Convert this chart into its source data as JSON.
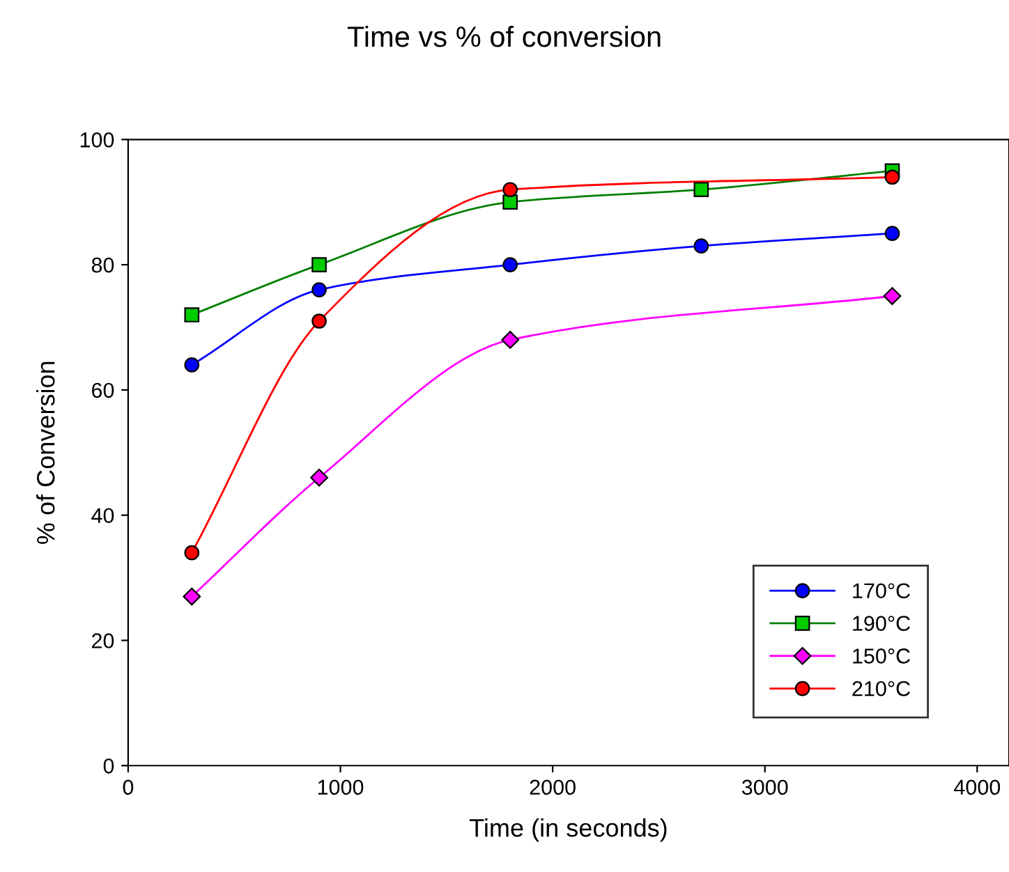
{
  "chart_data": {
    "type": "line",
    "title": "Time vs % of conversion",
    "xlabel": "Time (in seconds)",
    "ylabel": "% of Conversion",
    "xlim": [
      0,
      4150
    ],
    "xticks": [
      0,
      1000,
      2000,
      3000,
      4000
    ],
    "ylim": [
      0,
      100
    ],
    "yticks": [
      0,
      20,
      40,
      60,
      80,
      100
    ],
    "grid": false,
    "legend": "bottom right",
    "line_style": "solid",
    "series": [
      {
        "name": "170°C",
        "color": "#0000ff",
        "marker": "circle",
        "x": [
          300,
          900,
          1800,
          2700,
          3600
        ],
        "values": [
          64,
          76,
          80,
          83,
          85
        ]
      },
      {
        "name": "190°C",
        "color": "#008000",
        "marker": "square",
        "x": [
          300,
          900,
          1800,
          2700,
          3600
        ],
        "values": [
          72,
          80,
          90,
          92,
          95
        ]
      },
      {
        "name": "150°C",
        "color": "#ff00ff",
        "marker": "diamond",
        "x": [
          300,
          900,
          1800,
          3600
        ],
        "values": [
          27,
          46,
          68,
          75
        ]
      },
      {
        "name": "210°C",
        "color": "#ff0000",
        "marker": "circle",
        "x": [
          300,
          900,
          1800,
          3600
        ],
        "values": [
          34,
          71,
          92,
          94
        ]
      }
    ]
  }
}
